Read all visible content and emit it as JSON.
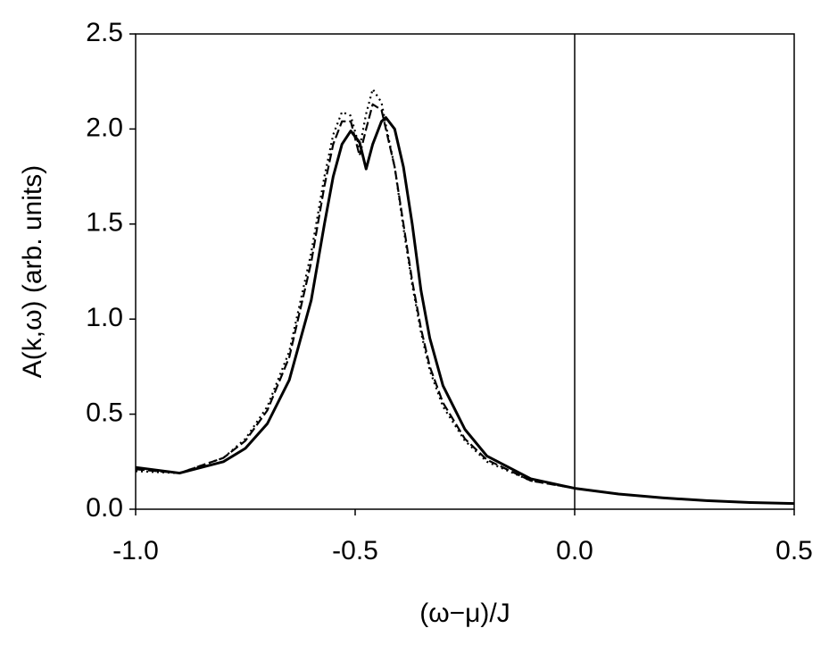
{
  "chart_data": {
    "type": "line",
    "xlabel": "(ω−μ)/J",
    "ylabel": "A(k,ω) (arb. units)",
    "x": [
      -1,
      -0.9,
      -0.8,
      -0.75,
      -0.7,
      -0.65,
      -0.6,
      -0.57,
      -0.55,
      -0.53,
      -0.51,
      -0.49,
      -0.475,
      -0.46,
      -0.44,
      -0.43,
      -0.41,
      -0.39,
      -0.37,
      -0.35,
      -0.33,
      -0.3,
      -0.25,
      -0.2,
      -0.1,
      0,
      0.1,
      0.2,
      0.3,
      0.4,
      0.5
    ],
    "series": [
      {
        "color": "#000000",
        "dash": "solid",
        "values": [
          0.22,
          0.19,
          0.25,
          0.32,
          0.45,
          0.68,
          1.1,
          1.5,
          1.75,
          1.92,
          1.99,
          1.93,
          1.79,
          1.92,
          2.04,
          2.06,
          2.0,
          1.8,
          1.5,
          1.15,
          0.9,
          0.65,
          0.42,
          0.28,
          0.16,
          0.11,
          0.08,
          0.06,
          0.045,
          0.035,
          0.03
        ]
      },
      {
        "color": "#000000",
        "dash": "dashed",
        "values": [
          0.21,
          0.19,
          0.27,
          0.36,
          0.52,
          0.8,
          1.3,
          1.7,
          1.92,
          2.04,
          2.04,
          1.86,
          2.0,
          2.13,
          2.1,
          2.0,
          1.8,
          1.5,
          1.2,
          0.95,
          0.75,
          0.56,
          0.37,
          0.26,
          0.15,
          0.11,
          0.08,
          0.06,
          0.045,
          0.035,
          0.03
        ]
      },
      {
        "color": "#000000",
        "dash": "dotted",
        "values": [
          0.2,
          0.19,
          0.27,
          0.37,
          0.54,
          0.83,
          1.35,
          1.75,
          1.97,
          2.09,
          2.07,
          1.9,
          2.08,
          2.21,
          2.14,
          2.02,
          1.8,
          1.48,
          1.18,
          0.93,
          0.73,
          0.54,
          0.36,
          0.25,
          0.15,
          0.11,
          0.08,
          0.06,
          0.045,
          0.035,
          0.03
        ]
      }
    ],
    "xlim": [
      -1,
      0.5
    ],
    "xticks": [
      {
        "value": -1,
        "label": "-1.0"
      },
      -0.5,
      {
        "value": 0,
        "label": "0.0"
      },
      0.5
    ],
    "ylim": [
      0,
      2.5
    ],
    "yticks": [
      {
        "value": 0,
        "label": "0.0"
      },
      0.5,
      {
        "value": 1,
        "label": "1.0"
      },
      1.5,
      {
        "value": 2,
        "label": "2.0"
      },
      2.5
    ],
    "vline": 0,
    "grid": false
  }
}
